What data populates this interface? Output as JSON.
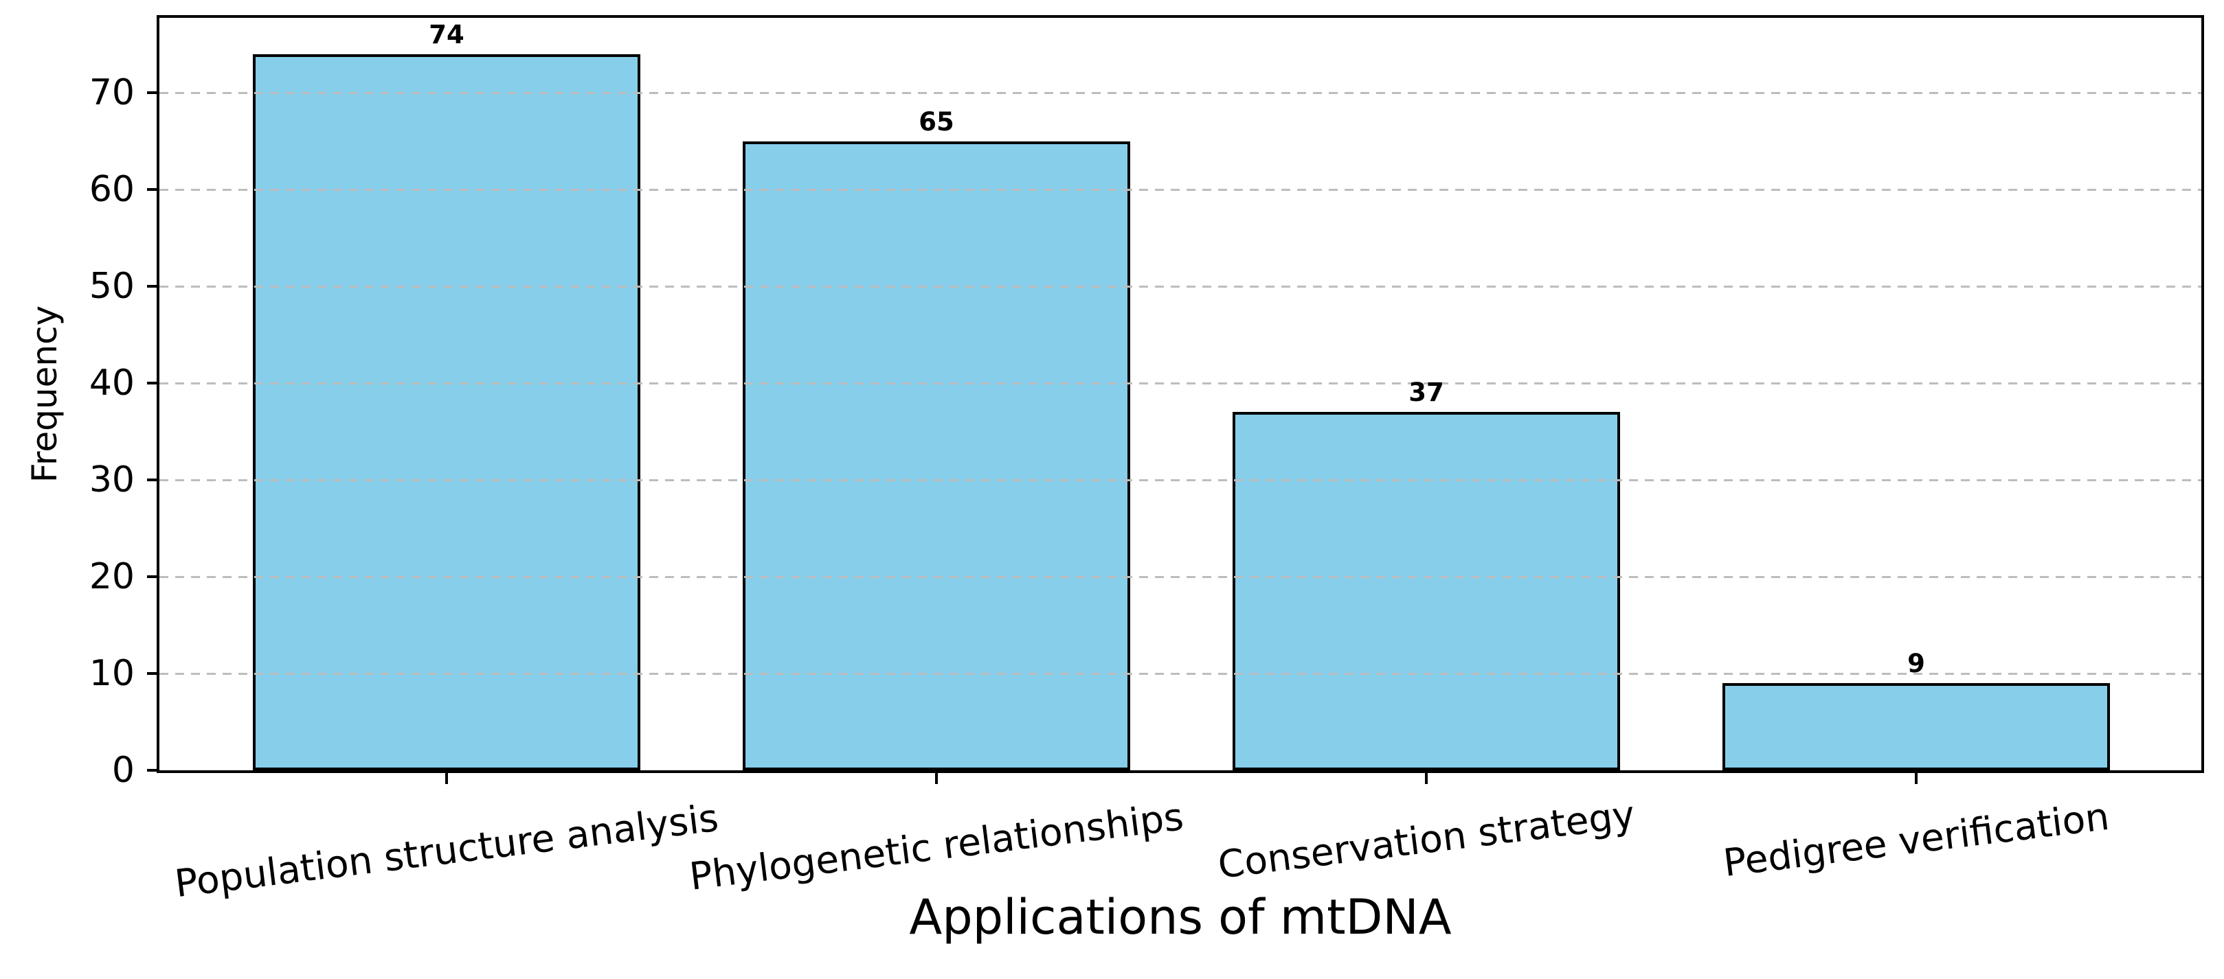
{
  "chart_data": {
    "type": "bar",
    "title": "",
    "categories": [
      "Population structure analysis",
      "Phylogenetic relationships",
      "Conservation strategy",
      "Pedigree verification"
    ],
    "values": [
      74,
      65,
      37,
      9
    ],
    "xlabel": "Applications of mtDNA",
    "ylabel": "Frequency",
    "yticks": [
      0,
      10,
      20,
      30,
      40,
      50,
      60,
      70
    ],
    "ylim": [
      0,
      77.7
    ],
    "grid": "horizontal dashed, drawn above bars",
    "legend": "none",
    "bar_color": "#87CEEB",
    "bar_edge_color": "#000000",
    "grid_color": "#bdbdbd",
    "text_color": "#000000",
    "xtick_rotation_deg": -7
  }
}
